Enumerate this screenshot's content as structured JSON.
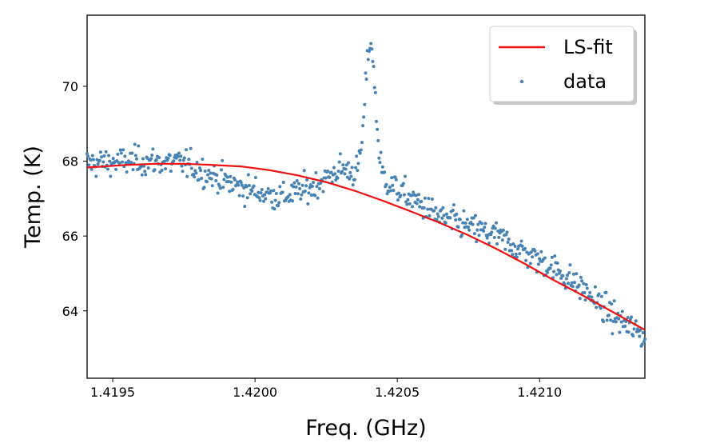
{
  "chart_data": {
    "type": "scatter",
    "xlabel": "Freq. (GHz)",
    "ylabel": "Temp. (K)",
    "xlim": [
      1.41941,
      1.42137
    ],
    "ylim": [
      62.2,
      71.9
    ],
    "xticks": [
      "1.4195",
      "1.4200",
      "1.4205",
      "1.4210"
    ],
    "xtick_values": [
      1.4195,
      1.42,
      1.4205,
      1.421
    ],
    "yticks": [
      "64",
      "66",
      "68",
      "70"
    ],
    "ytick_values": [
      64,
      66,
      68,
      70
    ],
    "grid": false,
    "legend_placement": "upper-right",
    "colors": {
      "fit": "#ee1111",
      "data": "#4682b4"
    },
    "series": [
      {
        "name": "LS-fit",
        "style": "line",
        "x": [
          1.41941,
          1.41955,
          1.41965,
          1.41975,
          1.41985,
          1.41995,
          1.42005,
          1.42015,
          1.42025,
          1.42035,
          1.42045,
          1.42055,
          1.42065,
          1.42075,
          1.42085,
          1.42095,
          1.42105,
          1.42115,
          1.42125,
          1.42137
        ],
        "y": [
          67.83,
          67.9,
          67.93,
          67.93,
          67.9,
          67.86,
          67.76,
          67.62,
          67.44,
          67.21,
          66.94,
          66.65,
          66.35,
          66.02,
          65.65,
          65.25,
          64.82,
          64.42,
          64.0,
          63.49
        ]
      },
      {
        "name": "data",
        "style": "points",
        "model": {
          "baseline": {
            "x": [
              1.41941,
              1.4196,
              1.41975,
              1.41985,
              1.41995,
              1.42005,
              1.4201,
              1.4202,
              1.4203,
              1.42045,
              1.42055,
              1.42065,
              1.42075,
              1.42085,
              1.42095,
              1.42105,
              1.42115,
              1.42125,
              1.42137
            ],
            "y": [
              67.95,
              68.0,
              67.95,
              67.6,
              67.3,
              67.1,
              67.05,
              67.3,
              67.8,
              67.5,
              67.0,
              66.5,
              66.25,
              66.0,
              65.55,
              65.15,
              64.6,
              63.9,
              63.3
            ]
          },
          "peak": {
            "center": 1.420405,
            "width": 1.75e-05,
            "height": 3.6
          },
          "count": 620,
          "noise_sd": 0.5
        }
      }
    ]
  }
}
